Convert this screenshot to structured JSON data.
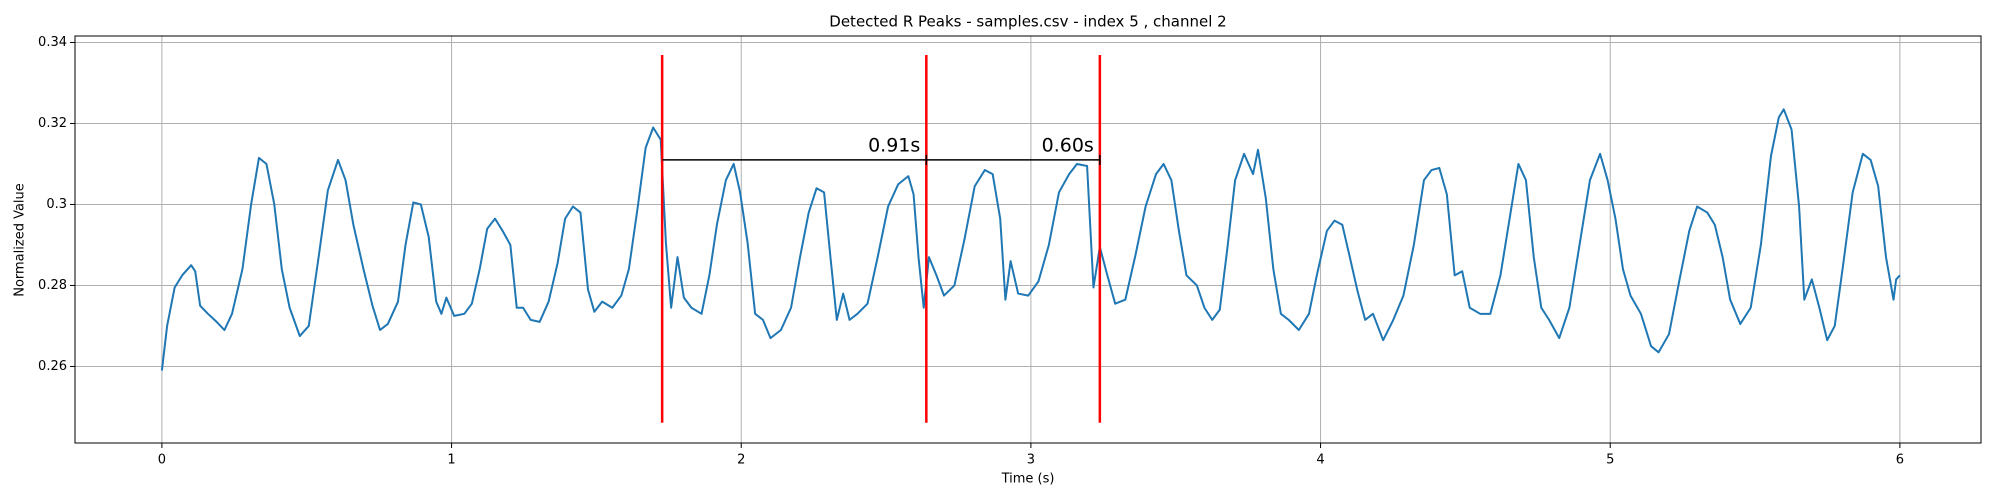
{
  "chart_data": {
    "type": "line",
    "title": "Detected R Peaks - samples.csv - index 5 , channel 2",
    "xlabel": "Time (s)",
    "ylabel": "Normalized Value",
    "xlim": [
      -0.3,
      6.28
    ],
    "ylim": [
      0.2411,
      0.3416
    ],
    "xticks": [
      0,
      1,
      2,
      3,
      4,
      5,
      6
    ],
    "yticks": [
      0.26,
      0.28,
      0.3,
      0.32,
      0.34
    ],
    "grid": true,
    "color": "#1f77b4",
    "x": [
      0,
      0.018,
      0.044,
      0.07,
      0.101,
      0.115,
      0.132,
      0.159,
      0.189,
      0.216,
      0.242,
      0.278,
      0.308,
      0.335,
      0.361,
      0.388,
      0.414,
      0.441,
      0.476,
      0.507,
      0.542,
      0.573,
      0.608,
      0.634,
      0.661,
      0.696,
      0.727,
      0.753,
      0.78,
      0.815,
      0.841,
      0.868,
      0.894,
      0.921,
      0.947,
      0.965,
      0.982,
      1.009,
      1.044,
      1.07,
      1.097,
      1.123,
      1.15,
      1.176,
      1.203,
      1.225,
      1.247,
      1.273,
      1.304,
      1.335,
      1.366,
      1.392,
      1.419,
      1.445,
      1.471,
      1.493,
      1.52,
      1.555,
      1.586,
      1.612,
      1.643,
      1.67,
      1.696,
      1.722,
      1.74,
      1.758,
      1.78,
      1.802,
      1.828,
      1.863,
      1.89,
      1.916,
      1.947,
      1.974,
      1.996,
      2.022,
      2.048,
      2.075,
      2.101,
      2.137,
      2.172,
      2.203,
      2.233,
      2.26,
      2.286,
      2.308,
      2.33,
      2.352,
      2.374,
      2.401,
      2.436,
      2.471,
      2.507,
      2.542,
      2.577,
      2.595,
      2.612,
      2.63,
      2.648,
      2.674,
      2.7,
      2.736,
      2.771,
      2.806,
      2.841,
      2.868,
      2.894,
      2.912,
      2.93,
      2.956,
      2.991,
      3.026,
      3.062,
      3.097,
      3.132,
      3.159,
      3.194,
      3.216,
      3.238,
      3.264,
      3.291,
      3.326,
      3.361,
      3.396,
      3.432,
      3.458,
      3.485,
      3.511,
      3.537,
      3.573,
      3.599,
      3.626,
      3.652,
      3.678,
      3.705,
      3.736,
      3.767,
      3.784,
      3.811,
      3.837,
      3.863,
      3.89,
      3.925,
      3.96,
      3.987,
      4.022,
      4.048,
      4.075,
      4.101,
      4.128,
      4.154,
      4.181,
      4.216,
      4.251,
      4.286,
      4.322,
      4.357,
      4.383,
      4.41,
      4.436,
      4.463,
      4.489,
      4.515,
      4.551,
      4.586,
      4.621,
      4.656,
      4.683,
      4.709,
      4.736,
      4.762,
      4.789,
      4.824,
      4.859,
      4.894,
      4.93,
      4.965,
      4.991,
      5.018,
      5.044,
      5.07,
      5.106,
      5.141,
      5.167,
      5.203,
      5.238,
      5.273,
      5.3,
      5.335,
      5.361,
      5.388,
      5.414,
      5.449,
      5.485,
      5.52,
      5.555,
      5.582,
      5.599,
      5.626,
      5.652,
      5.67,
      5.696,
      5.722,
      5.749,
      5.775,
      5.802,
      5.837,
      5.872,
      5.899,
      5.925,
      5.952,
      5.978,
      5.987,
      6.0
    ],
    "values": [
      0.259,
      0.27,
      0.2795,
      0.2825,
      0.285,
      0.2835,
      0.275,
      0.273,
      0.271,
      0.269,
      0.273,
      0.284,
      0.3,
      0.3115,
      0.31,
      0.3,
      0.284,
      0.2745,
      0.2675,
      0.27,
      0.2875,
      0.3035,
      0.311,
      0.306,
      0.295,
      0.284,
      0.275,
      0.269,
      0.2705,
      0.276,
      0.29,
      0.3005,
      0.3,
      0.292,
      0.276,
      0.273,
      0.277,
      0.2725,
      0.273,
      0.2755,
      0.284,
      0.294,
      0.2965,
      0.2935,
      0.29,
      0.2745,
      0.2745,
      0.2715,
      0.271,
      0.276,
      0.2855,
      0.2965,
      0.2995,
      0.298,
      0.279,
      0.2735,
      0.276,
      0.2745,
      0.2775,
      0.284,
      0.2995,
      0.314,
      0.319,
      0.316,
      0.2905,
      0.2745,
      0.287,
      0.277,
      0.2745,
      0.273,
      0.2825,
      0.295,
      0.306,
      0.31,
      0.303,
      0.2905,
      0.273,
      0.2715,
      0.267,
      0.269,
      0.2745,
      0.287,
      0.298,
      0.304,
      0.303,
      0.287,
      0.2715,
      0.278,
      0.2715,
      0.273,
      0.2755,
      0.287,
      0.2995,
      0.305,
      0.307,
      0.3025,
      0.287,
      0.2745,
      0.287,
      0.2825,
      0.2775,
      0.28,
      0.2915,
      0.3045,
      0.3085,
      0.3075,
      0.2965,
      0.2765,
      0.286,
      0.278,
      0.2775,
      0.281,
      0.29,
      0.303,
      0.3075,
      0.31,
      0.3095,
      0.2795,
      0.2895,
      0.2825,
      0.2755,
      0.2765,
      0.2875,
      0.2995,
      0.3075,
      0.31,
      0.306,
      0.2935,
      0.2825,
      0.28,
      0.2745,
      0.2715,
      0.274,
      0.289,
      0.306,
      0.3125,
      0.3075,
      0.3135,
      0.3015,
      0.284,
      0.273,
      0.2715,
      0.269,
      0.273,
      0.2825,
      0.2935,
      0.296,
      0.295,
      0.287,
      0.2785,
      0.2715,
      0.273,
      0.2665,
      0.2715,
      0.2775,
      0.29,
      0.306,
      0.3085,
      0.309,
      0.3025,
      0.2825,
      0.2835,
      0.2745,
      0.273,
      0.273,
      0.2825,
      0.298,
      0.31,
      0.306,
      0.287,
      0.2745,
      0.2715,
      0.267,
      0.2745,
      0.29,
      0.306,
      0.3125,
      0.306,
      0.2965,
      0.284,
      0.2775,
      0.273,
      0.265,
      0.2635,
      0.268,
      0.281,
      0.2935,
      0.2995,
      0.298,
      0.295,
      0.287,
      0.2765,
      0.2705,
      0.2745,
      0.29,
      0.312,
      0.3215,
      0.3235,
      0.3185,
      0.2995,
      0.2765,
      0.2815,
      0.2745,
      0.2665,
      0.27,
      0.284,
      0.303,
      0.3125,
      0.311,
      0.3045,
      0.287,
      0.2765,
      0.2815,
      0.2825
    ],
    "peaks": [
      1.727,
      2.639,
      3.238
    ],
    "peak_color": "#ff0000",
    "peak_range": [
      0.2461,
      0.3369
    ],
    "interval_y": 0.311,
    "intervals": [
      {
        "label": "0.91s",
        "start": 1.727,
        "end": 2.639
      },
      {
        "label": "0.60s",
        "start": 2.639,
        "end": 3.238
      }
    ]
  }
}
